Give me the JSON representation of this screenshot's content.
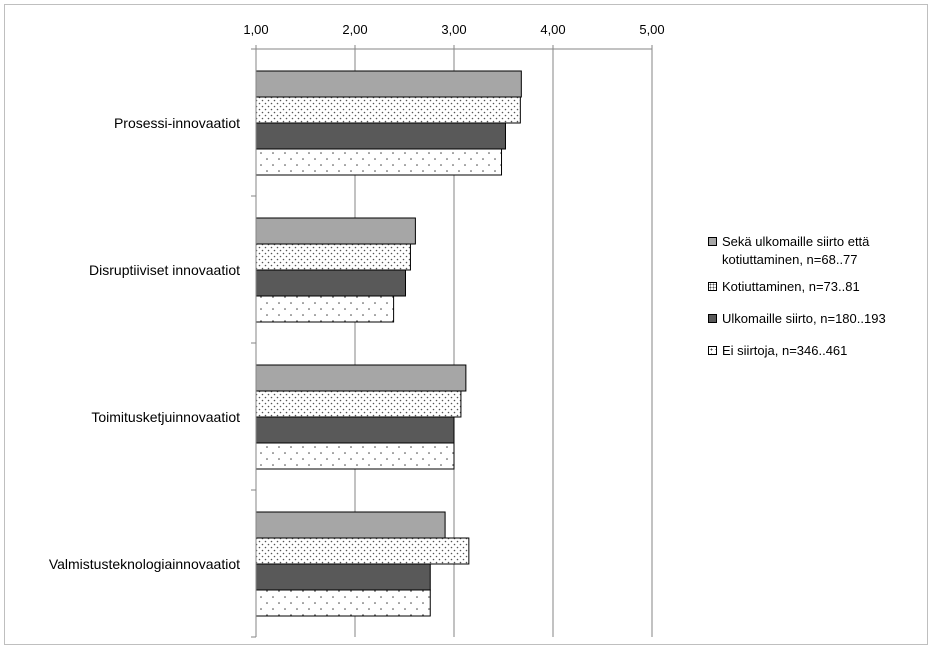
{
  "chart_data": {
    "type": "bar",
    "orientation": "horizontal",
    "title": "",
    "xlabel": "",
    "ylabel": "",
    "xlim": [
      1,
      5
    ],
    "x_ticks": [
      "1,00",
      "2,00",
      "3,00",
      "4,00",
      "5,00"
    ],
    "grid": true,
    "legend_position": "right",
    "categories": [
      "Prosessi-innovaatiot",
      "Disruptiiviset innovaatiot",
      "Toimitusketjuinnovaatiot",
      "Valmistusteknologiainnovaatiot"
    ],
    "series": [
      {
        "name": "Sekä ulkomaille siirto että kotiuttaminen, n=68..77",
        "fill": "#a6a6a6",
        "pattern": "solid",
        "values": [
          3.68,
          2.61,
          3.12,
          2.91
        ]
      },
      {
        "name": "Kotiuttaminen, n=73..81",
        "fill": "#d9d9d9",
        "pattern": "dense-dots",
        "values": [
          3.67,
          2.56,
          3.07,
          3.15
        ]
      },
      {
        "name": "Ulkomaille siirto, n=180..193",
        "fill": "#595959",
        "pattern": "solid",
        "values": [
          3.52,
          2.51,
          3.0,
          2.76
        ]
      },
      {
        "name": "Ei siirtoja, n=346..461",
        "fill": "#ffffff",
        "pattern": "sparse-dots",
        "values": [
          3.48,
          2.39,
          3.0,
          2.76
        ]
      }
    ]
  }
}
